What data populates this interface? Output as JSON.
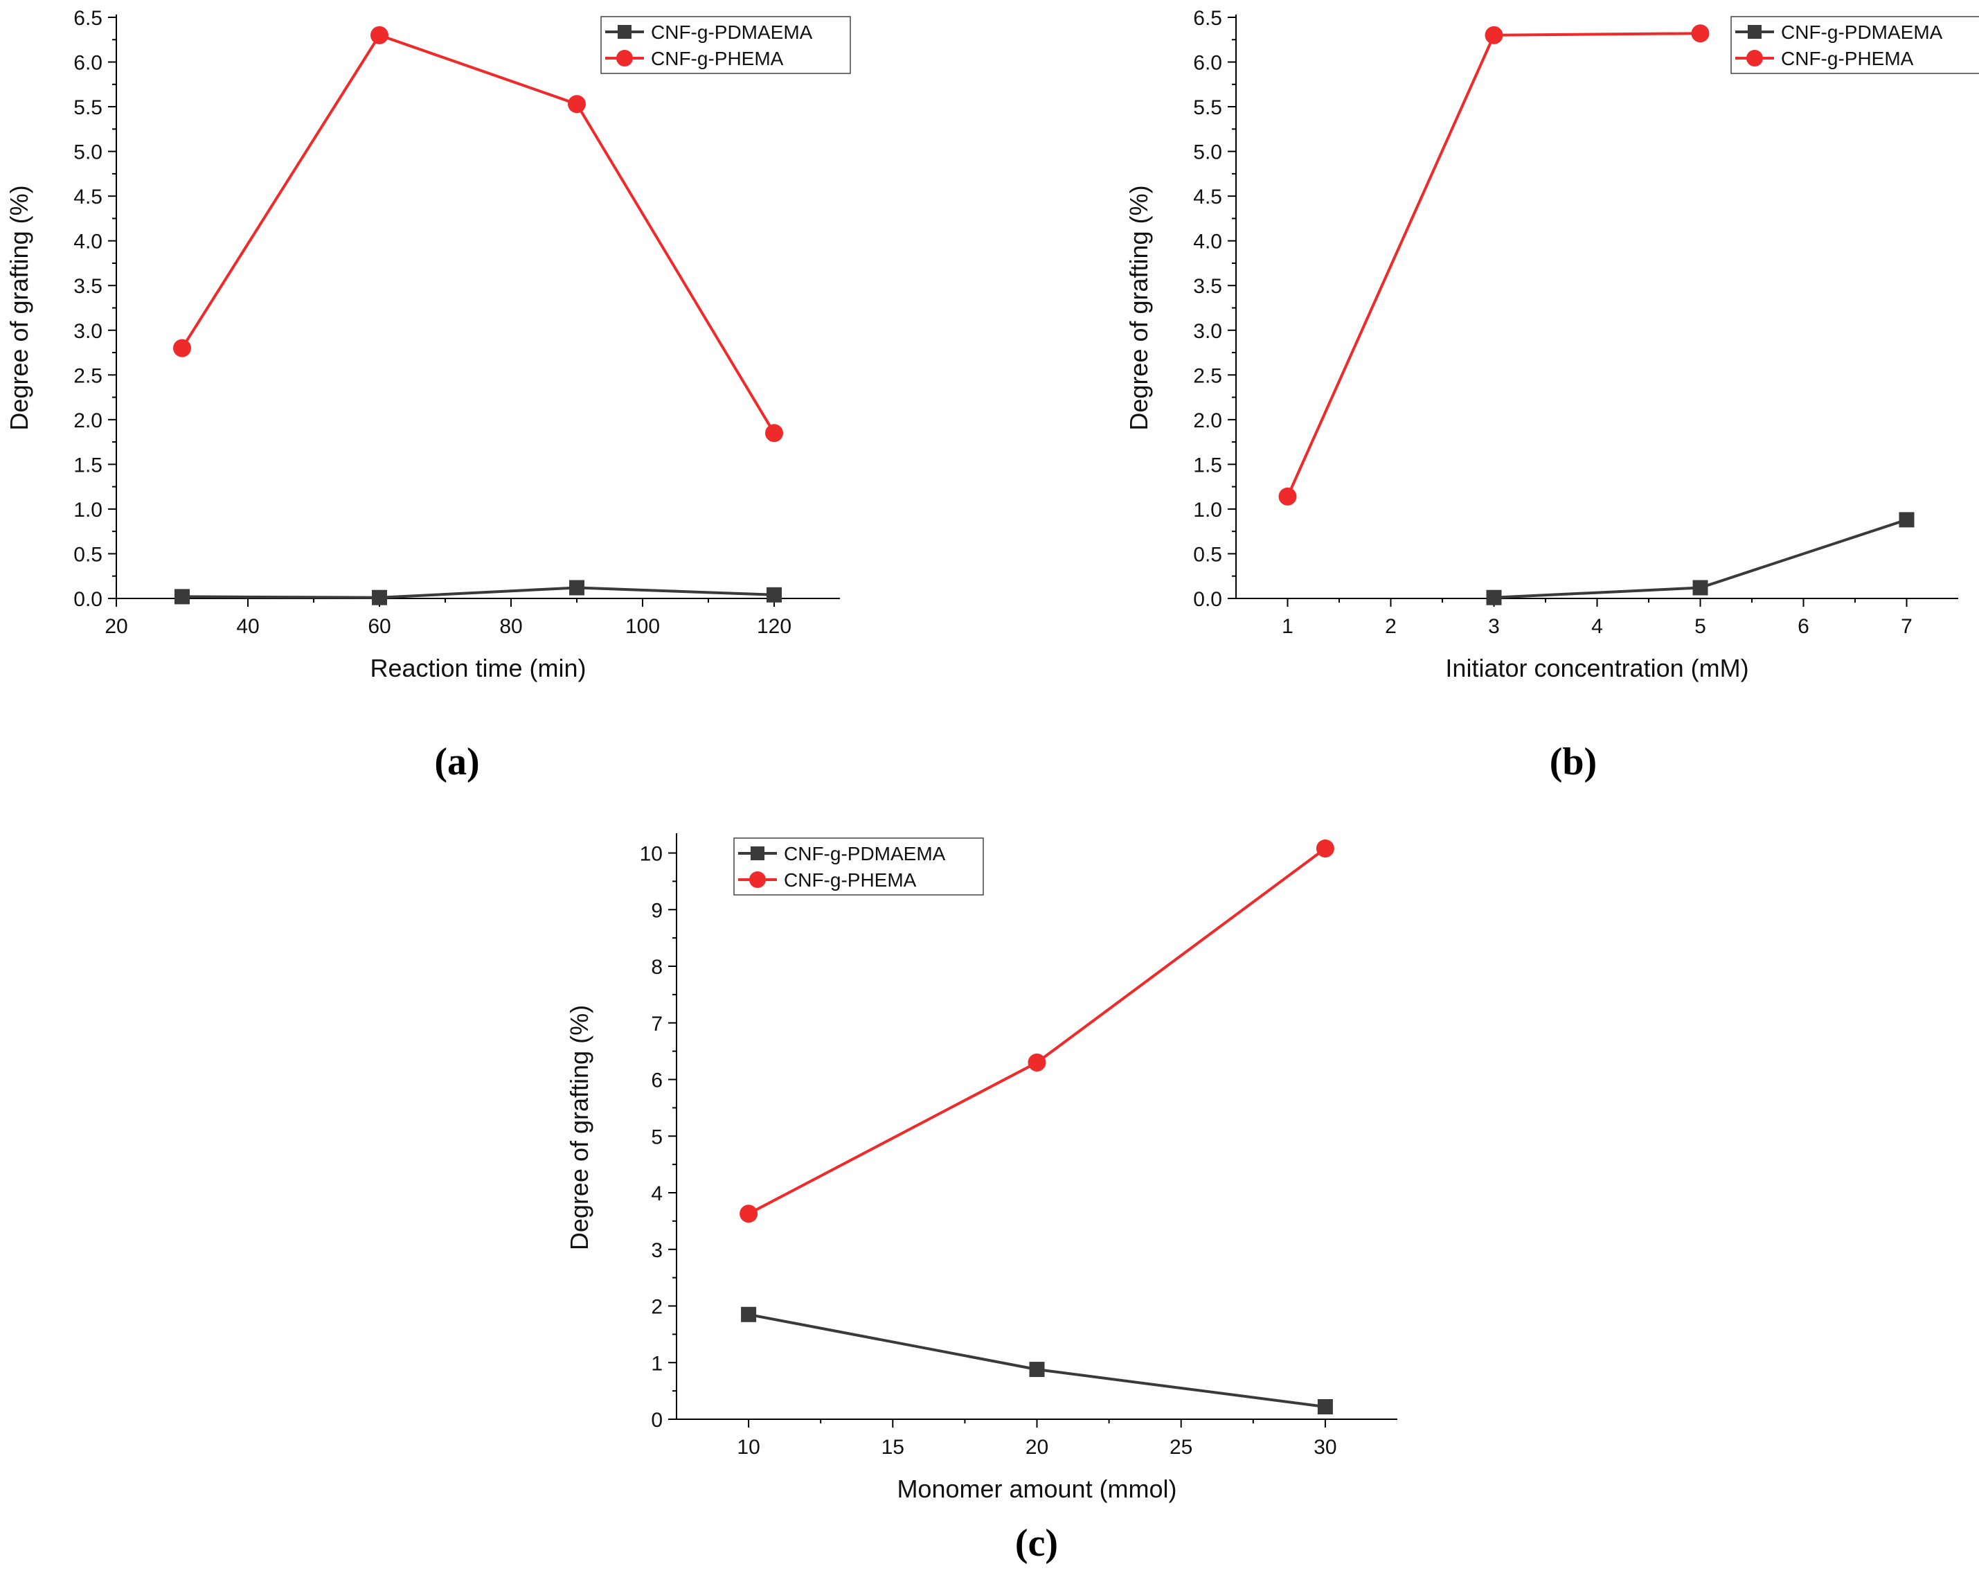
{
  "chart_data": [
    {
      "type": "line",
      "panel_label": "(a)",
      "xlabel": "Reaction time (min)",
      "ylabel": "Degree of grafting (%)",
      "xlim": [
        20,
        130
      ],
      "ylim": [
        0,
        6.5
      ],
      "xticks": [
        20,
        40,
        60,
        80,
        100,
        120
      ],
      "yticks": [
        0.0,
        0.5,
        1.0,
        1.5,
        2.0,
        2.5,
        3.0,
        3.5,
        4.0,
        4.5,
        5.0,
        5.5,
        6.0,
        6.5
      ],
      "ytick_decimals": 1,
      "legend": "top-right",
      "x": [
        30,
        60,
        90,
        120
      ],
      "series": [
        {
          "name": "CNF-g-PDMAEMA",
          "marker": "square",
          "color": "#3a3a3a",
          "values": [
            0.02,
            0.01,
            0.12,
            0.04
          ]
        },
        {
          "name": "CNF-g-PHEMA",
          "marker": "circle",
          "color": "#ee2a2a",
          "values": [
            2.8,
            6.3,
            5.53,
            1.85
          ]
        }
      ]
    },
    {
      "type": "line",
      "panel_label": "(b)",
      "xlabel": "Initiator concentration (mM)",
      "ylabel": "Degree of grafting (%)",
      "xlim": [
        0.5,
        7.5
      ],
      "ylim": [
        0,
        6.5
      ],
      "xticks": [
        1,
        2,
        3,
        4,
        5,
        6,
        7
      ],
      "yticks": [
        0.0,
        0.5,
        1.0,
        1.5,
        2.0,
        2.5,
        3.0,
        3.5,
        4.0,
        4.5,
        5.0,
        5.5,
        6.0,
        6.5
      ],
      "ytick_decimals": 1,
      "legend": "top-right",
      "x": [
        1,
        3,
        5,
        7
      ],
      "series": [
        {
          "name": "CNF-g-PDMAEMA",
          "marker": "square",
          "color": "#3a3a3a",
          "x": [
            3,
            5,
            7
          ],
          "values": [
            0.01,
            0.12,
            0.88
          ]
        },
        {
          "name": "CNF-g-PHEMA",
          "marker": "circle",
          "color": "#ee2a2a",
          "x": [
            1,
            3,
            5
          ],
          "values": [
            1.14,
            6.3,
            6.32
          ]
        }
      ]
    },
    {
      "type": "line",
      "panel_label": "(c)",
      "xlabel": "Monomer amount (mmol)",
      "ylabel": "Degree of grafting (%)",
      "xlim": [
        7.5,
        32.5
      ],
      "ylim": [
        0,
        10.3
      ],
      "xticks": [
        10,
        15,
        20,
        25,
        30
      ],
      "yticks": [
        0,
        1,
        2,
        3,
        4,
        5,
        6,
        7,
        8,
        9,
        10
      ],
      "ytick_decimals": 0,
      "legend": "top-left",
      "x": [
        10,
        20,
        30
      ],
      "series": [
        {
          "name": "CNF-g-PDMAEMA",
          "marker": "square",
          "color": "#3a3a3a",
          "values": [
            1.85,
            0.88,
            0.22
          ]
        },
        {
          "name": "CNF-g-PHEMA",
          "marker": "circle",
          "color": "#ee2a2a",
          "values": [
            3.63,
            6.3,
            10.08
          ]
        }
      ]
    }
  ]
}
